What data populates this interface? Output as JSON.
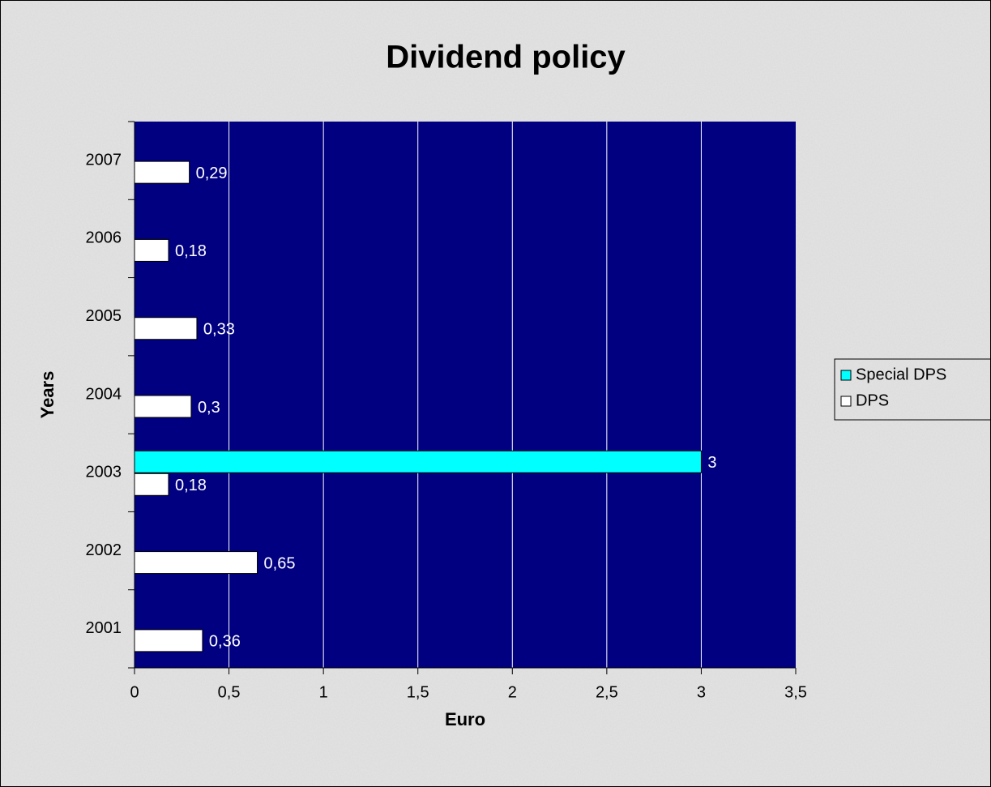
{
  "chart_data": {
    "type": "bar",
    "orientation": "horizontal",
    "title": "Dividend policy",
    "x_label": "Euro",
    "y_label": "Years",
    "categories": [
      "2001",
      "2002",
      "2003",
      "2004",
      "2005",
      "2006",
      "2007"
    ],
    "series": [
      {
        "name": "Special DPS",
        "color": "#00ffff",
        "values": [
          null,
          null,
          3,
          null,
          null,
          null,
          null
        ]
      },
      {
        "name": "DPS",
        "color": "#ffffff",
        "values": [
          0.36,
          0.65,
          0.18,
          0.3,
          0.33,
          0.18,
          0.29
        ],
        "value_labels": [
          "0,36",
          "0,65",
          "0,18",
          "0,3",
          "0,33",
          "0,18",
          "0,29"
        ]
      }
    ],
    "xlim": [
      0,
      3.5
    ],
    "xticks": [
      0,
      {
        "value": 0.5,
        "label": "0,5"
      },
      1,
      {
        "value": 1.5,
        "label": "1,5"
      },
      2,
      {
        "value": 2.5,
        "label": "2,5"
      },
      3,
      {
        "value": 3.5,
        "label": "3,5"
      }
    ],
    "grid": true,
    "legend": "right",
    "plot_color": "#000080"
  }
}
